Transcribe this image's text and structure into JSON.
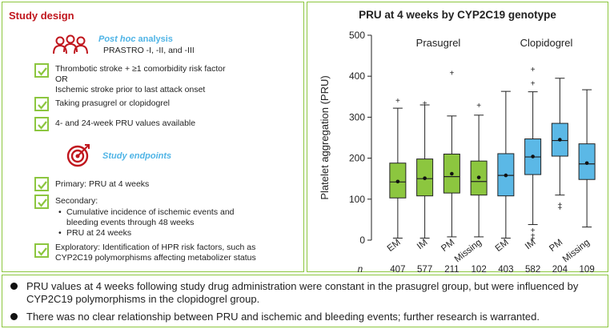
{
  "study_design": {
    "title": "Study design",
    "post_hoc_italic": "Post hoc",
    "post_hoc_rest": " analysis",
    "trials": "PRASTRO -I, -II, and -III",
    "criteria": [
      {
        "lines": [
          "Thrombotic stroke + ≥1 comorbidity risk factor",
          "OR",
          "Ischemic stroke prior to last attack onset"
        ]
      },
      {
        "lines": [
          "Taking prasugrel or clopidogrel"
        ]
      },
      {
        "lines": [
          "4- and 24-week PRU values available"
        ]
      }
    ],
    "endpoints_title": "Study endpoints",
    "primary": "Primary: PRU at 4 weeks",
    "secondary_label": "Secondary:",
    "secondary_items": [
      "Cumulative incidence of ischemic events and",
      "bleeding events through 48 weeks",
      "PRU at 24 weeks"
    ],
    "exploratory": [
      "Exploratory: Identification of HPR risk factors, such as",
      "CYP2C19 polymorphisms affecting metabolizer status"
    ]
  },
  "chart_data": {
    "type": "box",
    "title": "PRU at 4 weeks by CYP2C19 genotype",
    "ylabel": "Platelet aggregation (PRU)",
    "ylim": [
      0,
      500
    ],
    "yticks": [
      0,
      100,
      200,
      300,
      400,
      500
    ],
    "group_labels": [
      "Prasugrel",
      "Clopidogrel"
    ],
    "n_label": "n",
    "colors": {
      "prasugrel": "#8cc63f",
      "clopidogrel": "#5bb8e6"
    },
    "boxes": [
      {
        "group": "Prasugrel",
        "category": "EM",
        "n": "407",
        "whisker_low": 5,
        "q1": 103,
        "median": 142,
        "q3": 188,
        "whisker_high": 322,
        "mean": 143,
        "outliers_high": [
          342
        ],
        "outliers_low": []
      },
      {
        "group": "Prasugrel",
        "category": "IM",
        "n": "577",
        "whisker_low": 5,
        "q1": 108,
        "median": 150,
        "q3": 198,
        "whisker_high": 330,
        "mean": 151,
        "outliers_high": [
          335
        ],
        "outliers_low": []
      },
      {
        "group": "Prasugrel",
        "category": "PM",
        "n": "211",
        "whisker_low": 8,
        "q1": 115,
        "median": 155,
        "q3": 210,
        "whisker_high": 303,
        "mean": 162,
        "outliers_high": [
          409
        ],
        "outliers_low": []
      },
      {
        "group": "Prasugrel",
        "category": "Missing",
        "n": "102",
        "whisker_low": 8,
        "q1": 110,
        "median": 143,
        "q3": 193,
        "whisker_high": 305,
        "mean": 153,
        "outliers_high": [
          330
        ],
        "outliers_low": []
      },
      {
        "group": "Clopidogrel",
        "category": "EM",
        "n": "403",
        "whisker_low": 5,
        "q1": 108,
        "median": 158,
        "q3": 211,
        "whisker_high": 363,
        "mean": 158,
        "outliers_high": [],
        "outliers_low": []
      },
      {
        "group": "Clopidogrel",
        "category": "IM",
        "n": "582",
        "whisker_low": 38,
        "q1": 160,
        "median": 203,
        "q3": 247,
        "whisker_high": 362,
        "mean": 204,
        "outliers_high": [
          384,
          418
        ],
        "outliers_low": [
          25,
          13,
          5
        ]
      },
      {
        "group": "Clopidogrel",
        "category": "PM",
        "n": "204",
        "whisker_low": 110,
        "q1": 205,
        "median": 243,
        "q3": 285,
        "whisker_high": 395,
        "mean": 245,
        "outliers_high": [],
        "outliers_low": [
          88,
          80
        ]
      },
      {
        "group": "Clopidogrel",
        "category": "Missing",
        "n": "109",
        "whisker_low": 32,
        "q1": 148,
        "median": 186,
        "q3": 235,
        "whisker_high": 367,
        "mean": 188,
        "outliers_high": [],
        "outliers_low": []
      }
    ]
  },
  "summary": [
    "PRU values at 4 weeks following study drug administration were constant in the prasugrel group, but were influenced by CYP2C19 polymorphisms in the clopidogrel group.",
    "There was no clear relationship between PRU and ischemic and bleeding events; further research is warranted."
  ],
  "icons": {
    "people": "people-group-icon",
    "target": "target-icon",
    "check": "check-icon"
  }
}
